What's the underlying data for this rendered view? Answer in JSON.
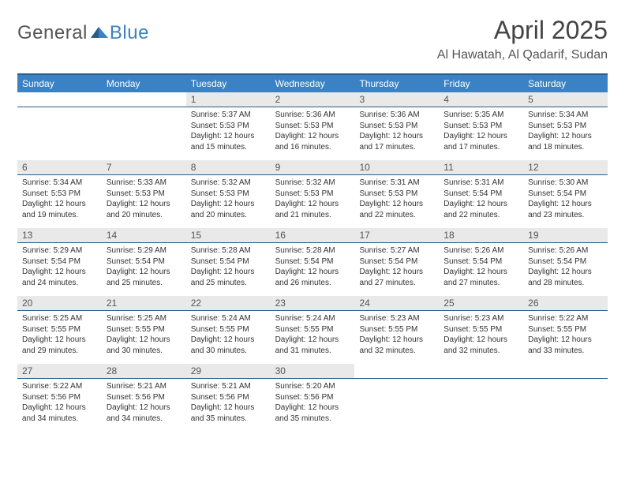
{
  "logo": {
    "general": "General",
    "blue": "Blue"
  },
  "title": "April 2025",
  "location": "Al Hawatah, Al Qadarif, Sudan",
  "colors": {
    "header_bg": "#3b82c4",
    "header_text": "#ffffff",
    "daynum_bg": "#e9e9e9",
    "border": "#2a5d8a",
    "logo_gray": "#555555",
    "logo_blue": "#3b82c4"
  },
  "day_headers": [
    "Sunday",
    "Monday",
    "Tuesday",
    "Wednesday",
    "Thursday",
    "Friday",
    "Saturday"
  ],
  "weeks": [
    [
      {
        "day": "",
        "lines": []
      },
      {
        "day": "",
        "lines": []
      },
      {
        "day": "1",
        "lines": [
          "Sunrise: 5:37 AM",
          "Sunset: 5:53 PM",
          "Daylight: 12 hours",
          "and 15 minutes."
        ]
      },
      {
        "day": "2",
        "lines": [
          "Sunrise: 5:36 AM",
          "Sunset: 5:53 PM",
          "Daylight: 12 hours",
          "and 16 minutes."
        ]
      },
      {
        "day": "3",
        "lines": [
          "Sunrise: 5:36 AM",
          "Sunset: 5:53 PM",
          "Daylight: 12 hours",
          "and 17 minutes."
        ]
      },
      {
        "day": "4",
        "lines": [
          "Sunrise: 5:35 AM",
          "Sunset: 5:53 PM",
          "Daylight: 12 hours",
          "and 17 minutes."
        ]
      },
      {
        "day": "5",
        "lines": [
          "Sunrise: 5:34 AM",
          "Sunset: 5:53 PM",
          "Daylight: 12 hours",
          "and 18 minutes."
        ]
      }
    ],
    [
      {
        "day": "6",
        "lines": [
          "Sunrise: 5:34 AM",
          "Sunset: 5:53 PM",
          "Daylight: 12 hours",
          "and 19 minutes."
        ]
      },
      {
        "day": "7",
        "lines": [
          "Sunrise: 5:33 AM",
          "Sunset: 5:53 PM",
          "Daylight: 12 hours",
          "and 20 minutes."
        ]
      },
      {
        "day": "8",
        "lines": [
          "Sunrise: 5:32 AM",
          "Sunset: 5:53 PM",
          "Daylight: 12 hours",
          "and 20 minutes."
        ]
      },
      {
        "day": "9",
        "lines": [
          "Sunrise: 5:32 AM",
          "Sunset: 5:53 PM",
          "Daylight: 12 hours",
          "and 21 minutes."
        ]
      },
      {
        "day": "10",
        "lines": [
          "Sunrise: 5:31 AM",
          "Sunset: 5:53 PM",
          "Daylight: 12 hours",
          "and 22 minutes."
        ]
      },
      {
        "day": "11",
        "lines": [
          "Sunrise: 5:31 AM",
          "Sunset: 5:54 PM",
          "Daylight: 12 hours",
          "and 22 minutes."
        ]
      },
      {
        "day": "12",
        "lines": [
          "Sunrise: 5:30 AM",
          "Sunset: 5:54 PM",
          "Daylight: 12 hours",
          "and 23 minutes."
        ]
      }
    ],
    [
      {
        "day": "13",
        "lines": [
          "Sunrise: 5:29 AM",
          "Sunset: 5:54 PM",
          "Daylight: 12 hours",
          "and 24 minutes."
        ]
      },
      {
        "day": "14",
        "lines": [
          "Sunrise: 5:29 AM",
          "Sunset: 5:54 PM",
          "Daylight: 12 hours",
          "and 25 minutes."
        ]
      },
      {
        "day": "15",
        "lines": [
          "Sunrise: 5:28 AM",
          "Sunset: 5:54 PM",
          "Daylight: 12 hours",
          "and 25 minutes."
        ]
      },
      {
        "day": "16",
        "lines": [
          "Sunrise: 5:28 AM",
          "Sunset: 5:54 PM",
          "Daylight: 12 hours",
          "and 26 minutes."
        ]
      },
      {
        "day": "17",
        "lines": [
          "Sunrise: 5:27 AM",
          "Sunset: 5:54 PM",
          "Daylight: 12 hours",
          "and 27 minutes."
        ]
      },
      {
        "day": "18",
        "lines": [
          "Sunrise: 5:26 AM",
          "Sunset: 5:54 PM",
          "Daylight: 12 hours",
          "and 27 minutes."
        ]
      },
      {
        "day": "19",
        "lines": [
          "Sunrise: 5:26 AM",
          "Sunset: 5:54 PM",
          "Daylight: 12 hours",
          "and 28 minutes."
        ]
      }
    ],
    [
      {
        "day": "20",
        "lines": [
          "Sunrise: 5:25 AM",
          "Sunset: 5:55 PM",
          "Daylight: 12 hours",
          "and 29 minutes."
        ]
      },
      {
        "day": "21",
        "lines": [
          "Sunrise: 5:25 AM",
          "Sunset: 5:55 PM",
          "Daylight: 12 hours",
          "and 30 minutes."
        ]
      },
      {
        "day": "22",
        "lines": [
          "Sunrise: 5:24 AM",
          "Sunset: 5:55 PM",
          "Daylight: 12 hours",
          "and 30 minutes."
        ]
      },
      {
        "day": "23",
        "lines": [
          "Sunrise: 5:24 AM",
          "Sunset: 5:55 PM",
          "Daylight: 12 hours",
          "and 31 minutes."
        ]
      },
      {
        "day": "24",
        "lines": [
          "Sunrise: 5:23 AM",
          "Sunset: 5:55 PM",
          "Daylight: 12 hours",
          "and 32 minutes."
        ]
      },
      {
        "day": "25",
        "lines": [
          "Sunrise: 5:23 AM",
          "Sunset: 5:55 PM",
          "Daylight: 12 hours",
          "and 32 minutes."
        ]
      },
      {
        "day": "26",
        "lines": [
          "Sunrise: 5:22 AM",
          "Sunset: 5:55 PM",
          "Daylight: 12 hours",
          "and 33 minutes."
        ]
      }
    ],
    [
      {
        "day": "27",
        "lines": [
          "Sunrise: 5:22 AM",
          "Sunset: 5:56 PM",
          "Daylight: 12 hours",
          "and 34 minutes."
        ]
      },
      {
        "day": "28",
        "lines": [
          "Sunrise: 5:21 AM",
          "Sunset: 5:56 PM",
          "Daylight: 12 hours",
          "and 34 minutes."
        ]
      },
      {
        "day": "29",
        "lines": [
          "Sunrise: 5:21 AM",
          "Sunset: 5:56 PM",
          "Daylight: 12 hours",
          "and 35 minutes."
        ]
      },
      {
        "day": "30",
        "lines": [
          "Sunrise: 5:20 AM",
          "Sunset: 5:56 PM",
          "Daylight: 12 hours",
          "and 35 minutes."
        ]
      },
      {
        "day": "",
        "lines": []
      },
      {
        "day": "",
        "lines": []
      },
      {
        "day": "",
        "lines": []
      }
    ]
  ]
}
